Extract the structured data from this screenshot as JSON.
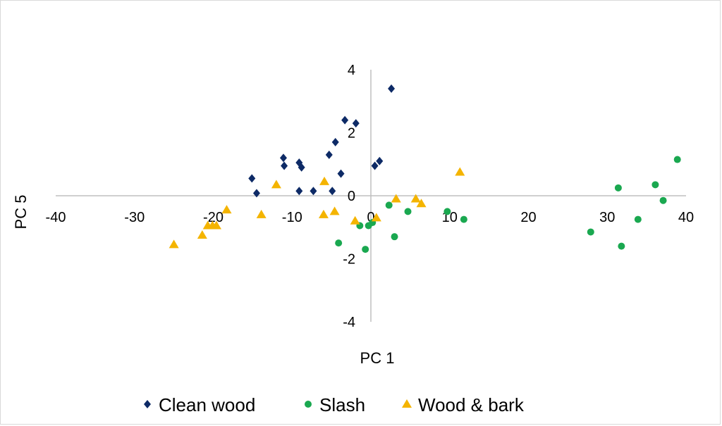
{
  "chart_data": {
    "type": "scatter",
    "title": "",
    "xlabel": "PC 1",
    "ylabel": "PC 5",
    "xlim": [
      -40,
      40
    ],
    "ylim": [
      -4,
      4
    ],
    "x_ticks": [
      "-40",
      "-30",
      "-20",
      "-10",
      "0",
      "10",
      "20",
      "30",
      "40"
    ],
    "y_ticks": [
      "4",
      "2",
      "0",
      "-2",
      "-4"
    ],
    "grid": false,
    "legend_position": "bottom",
    "series": [
      {
        "name": "Clean wood",
        "marker": "diamond",
        "color": "#0d2a66",
        "points": [
          [
            2.6,
            3.4
          ],
          [
            -3.3,
            2.4
          ],
          [
            -1.9,
            2.3
          ],
          [
            -4.5,
            1.7
          ],
          [
            -5.3,
            1.3
          ],
          [
            -11.1,
            1.2
          ],
          [
            -11.0,
            0.95
          ],
          [
            -9.1,
            1.05
          ],
          [
            -8.8,
            0.9
          ],
          [
            -3.8,
            0.7
          ],
          [
            -15.1,
            0.55
          ],
          [
            0.5,
            0.95
          ],
          [
            1.1,
            1.1
          ],
          [
            -14.5,
            0.08
          ],
          [
            -9.1,
            0.15
          ],
          [
            -7.3,
            0.15
          ],
          [
            -4.9,
            0.15
          ]
        ]
      },
      {
        "name": "Slash",
        "marker": "circle",
        "color": "#1aa850",
        "points": [
          [
            38.9,
            1.15
          ],
          [
            31.4,
            0.25
          ],
          [
            36.1,
            0.35
          ],
          [
            37.1,
            -0.15
          ],
          [
            33.9,
            -0.75
          ],
          [
            27.9,
            -1.15
          ],
          [
            31.8,
            -1.6
          ],
          [
            11.8,
            -0.75
          ],
          [
            9.7,
            -0.5
          ],
          [
            4.7,
            -0.5
          ],
          [
            2.3,
            -0.3
          ],
          [
            0.2,
            -0.85
          ],
          [
            -0.3,
            -0.95
          ],
          [
            -1.4,
            -0.95
          ],
          [
            -4.1,
            -1.5
          ],
          [
            -0.7,
            -1.7
          ],
          [
            3.0,
            -1.3
          ]
        ]
      },
      {
        "name": "Wood & bark",
        "marker": "triangle",
        "color": "#f4b400",
        "points": [
          [
            11.3,
            0.75
          ],
          [
            -12.0,
            0.35
          ],
          [
            -5.9,
            0.45
          ],
          [
            3.2,
            -0.1
          ],
          [
            5.7,
            -0.1
          ],
          [
            6.4,
            -0.25
          ],
          [
            -18.3,
            -0.45
          ],
          [
            -13.9,
            -0.6
          ],
          [
            -6.0,
            -0.6
          ],
          [
            -4.6,
            -0.5
          ],
          [
            -2.0,
            -0.8
          ],
          [
            0.7,
            -0.7
          ],
          [
            -20.1,
            -0.95
          ],
          [
            -20.7,
            -0.95
          ],
          [
            -19.6,
            -0.95
          ],
          [
            -21.4,
            -1.25
          ],
          [
            -25.0,
            -1.55
          ]
        ]
      }
    ]
  }
}
